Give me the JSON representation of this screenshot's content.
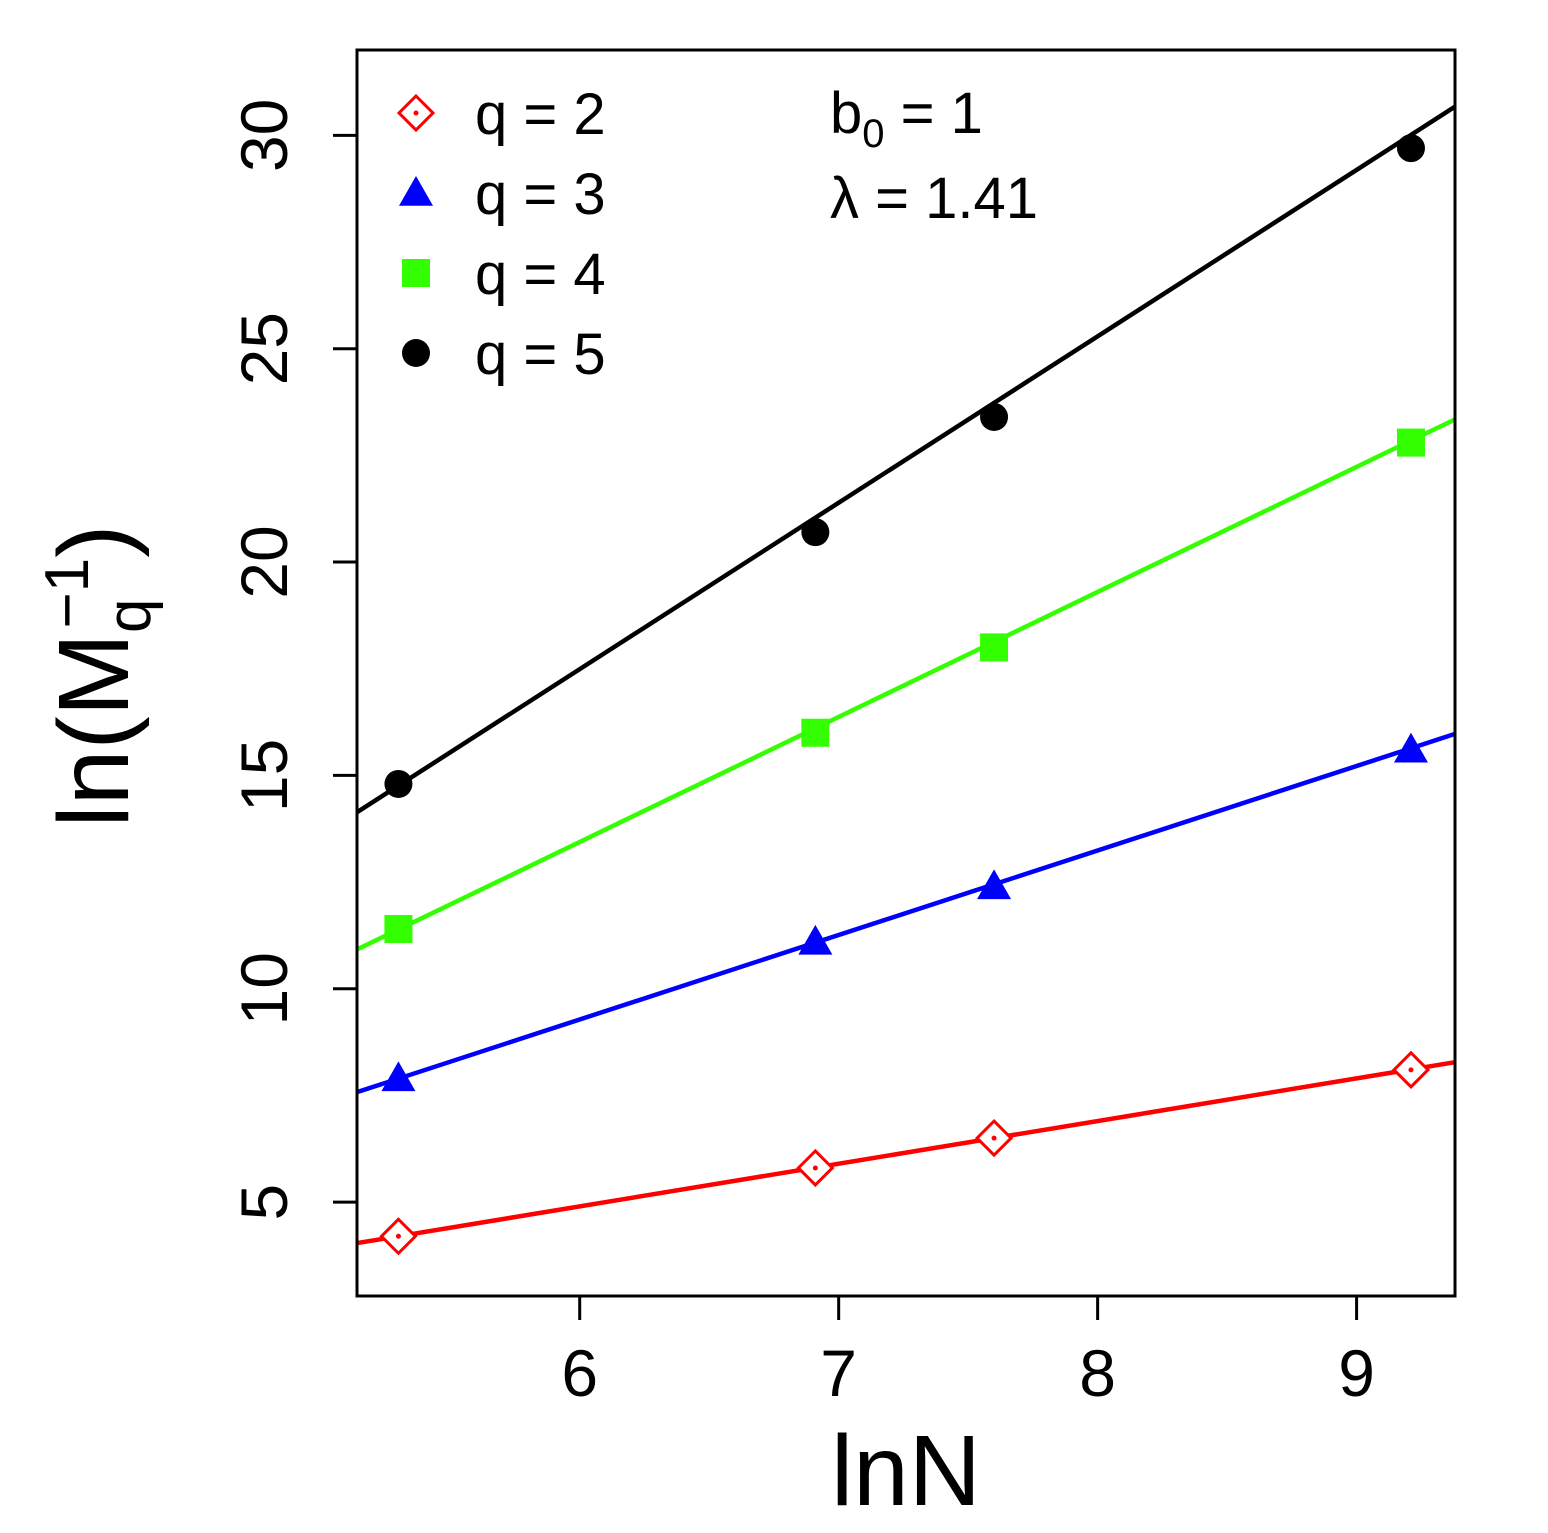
{
  "chart_data": {
    "type": "scatter",
    "xlabel": "lnN",
    "ylabel": "ln(M_q^-1)",
    "ylabel_parts": {
      "prefix": "ln",
      "open": "(",
      "base": "M",
      "sub": "q",
      "sup": "−1",
      "close": ")"
    },
    "xlim": [
      5.14,
      9.38
    ],
    "ylim": [
      2.8,
      32
    ],
    "x_ticks": [
      6,
      7,
      8,
      9
    ],
    "x_tick_labels": [
      "6",
      "7",
      "8",
      "9"
    ],
    "y_ticks": [
      5,
      10,
      15,
      20,
      25,
      30
    ],
    "y_tick_labels": [
      "5",
      "10",
      "15",
      "20",
      "25",
      "30"
    ],
    "grid": false,
    "legend_position": "top-left",
    "annotations": {
      "b0": {
        "base": "b",
        "sub": "0",
        "rest": " = 1"
      },
      "lambda": "λ = 1.41"
    },
    "series": [
      {
        "name": "q = 2",
        "color": "#ff0000",
        "marker": "diamond-open-dot",
        "x": [
          5.3,
          6.91,
          7.6,
          9.21
        ],
        "y": [
          4.2,
          5.8,
          6.5,
          8.1
        ],
        "fit": {
          "slope": 1.0,
          "intercept": -1.1
        }
      },
      {
        "name": "q = 3",
        "color": "#0000ff",
        "marker": "triangle",
        "x": [
          5.3,
          6.91,
          7.6,
          9.21
        ],
        "y": [
          7.9,
          11.1,
          12.4,
          15.6
        ],
        "fit": {
          "slope": 1.98,
          "intercept": -2.6
        }
      },
      {
        "name": "q = 4",
        "color": "#33ff00",
        "marker": "square",
        "x": [
          5.3,
          6.91,
          7.6,
          9.21
        ],
        "y": [
          11.4,
          16.0,
          18.0,
          22.8
        ],
        "fit": {
          "slope": 2.93,
          "intercept": -4.14
        }
      },
      {
        "name": "q = 5",
        "color": "#000000",
        "marker": "circle",
        "x": [
          5.3,
          6.91,
          7.6,
          9.21
        ],
        "y": [
          14.8,
          20.7,
          23.4,
          29.7
        ],
        "fit": {
          "slope": 3.9,
          "intercept": -5.91
        }
      }
    ]
  }
}
